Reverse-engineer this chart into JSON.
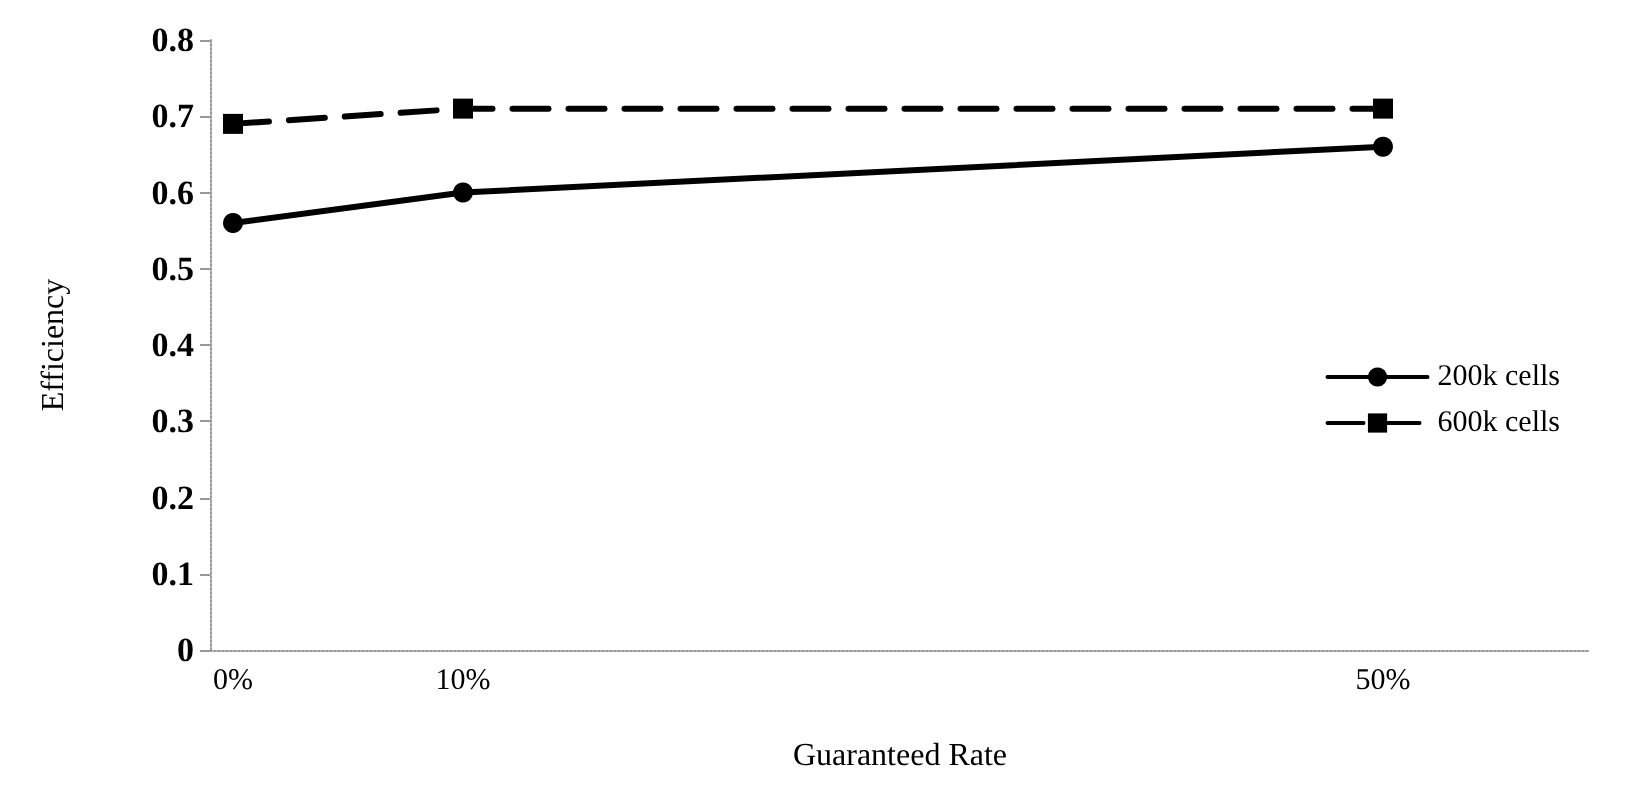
{
  "chart_data": {
    "type": "line",
    "xlabel": "Guaranteed Rate",
    "ylabel": "Efficiency",
    "x": [
      0,
      10,
      50
    ],
    "xlim": [
      -1,
      59
    ],
    "xticks": [
      {
        "value": 0,
        "label": "0%"
      },
      {
        "value": 10,
        "label": "10%"
      },
      {
        "value": 50,
        "label": "50%"
      }
    ],
    "ylim": [
      0,
      0.8
    ],
    "yticks": [
      0,
      0.1,
      0.2,
      0.3,
      0.4,
      0.5,
      0.6,
      0.7,
      0.8
    ],
    "series": [
      {
        "name": "200k cells",
        "color": "#000000",
        "values": [
          0.56,
          0.6,
          0.66
        ],
        "marker": "circle",
        "line_style": "solid"
      },
      {
        "name": "600k cells",
        "color": "#000000",
        "values": [
          0.69,
          0.71,
          0.71
        ],
        "marker": "square",
        "line_style": "dashed"
      }
    ],
    "legend": "right",
    "grid": false
  }
}
